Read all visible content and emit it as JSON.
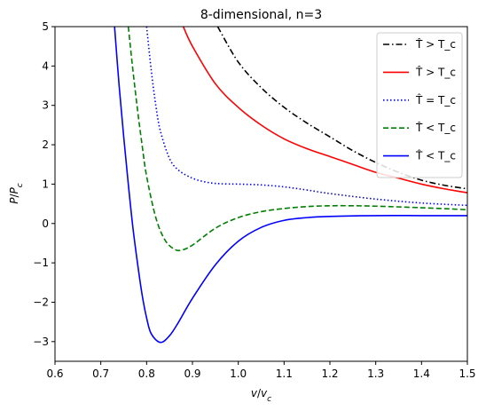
{
  "chart_data": {
    "type": "line",
    "title": "8-dimensional, n=3",
    "xlabel": "v/v_c",
    "ylabel": "P/P_c",
    "xlim": [
      0.6,
      1.5
    ],
    "ylim": [
      -3.5,
      5
    ],
    "xticks": [
      "0.6",
      "0.7",
      "0.8",
      "0.9",
      "1.0",
      "1.1",
      "1.2",
      "1.3",
      "1.4",
      "1.5"
    ],
    "yticks": [
      "−3",
      "−2",
      "−1",
      "0",
      "1",
      "2",
      "3",
      "4",
      "5"
    ],
    "grid": false,
    "legend_position": "top-right",
    "series": [
      {
        "name": "T̂ > T_c",
        "color": "#000000",
        "style": "dashdot",
        "x": [
          0.955,
          1.0,
          1.05,
          1.1,
          1.15,
          1.2,
          1.25,
          1.3,
          1.35,
          1.4,
          1.45,
          1.5
        ],
        "y": [
          5.0,
          4.1,
          3.45,
          2.95,
          2.55,
          2.2,
          1.85,
          1.55,
          1.3,
          1.1,
          0.97,
          0.88
        ]
      },
      {
        "name": "T̂ > T_c",
        "color": "#ff0000",
        "style": "solid",
        "x": [
          0.88,
          0.9,
          0.95,
          1.0,
          1.05,
          1.1,
          1.15,
          1.2,
          1.25,
          1.3,
          1.35,
          1.4,
          1.45,
          1.5
        ],
        "y": [
          5.0,
          4.5,
          3.55,
          2.95,
          2.5,
          2.15,
          1.9,
          1.7,
          1.5,
          1.3,
          1.15,
          1.0,
          0.88,
          0.78
        ]
      },
      {
        "name": "T̂ = T_c",
        "color": "#0000ff",
        "style": "dotted",
        "x": [
          0.8,
          0.81,
          0.82,
          0.83,
          0.85,
          0.87,
          0.9,
          0.93,
          0.96,
          1.0,
          1.05,
          1.1,
          1.15,
          1.2,
          1.3,
          1.4,
          1.5
        ],
        "y": [
          5.0,
          3.9,
          3.0,
          2.35,
          1.65,
          1.35,
          1.15,
          1.05,
          1.01,
          1.0,
          0.98,
          0.93,
          0.85,
          0.76,
          0.62,
          0.52,
          0.46
        ]
      },
      {
        "name": "T̂ < T_c",
        "color": "#008000",
        "style": "dashed",
        "x": [
          0.76,
          0.77,
          0.78,
          0.79,
          0.8,
          0.82,
          0.84,
          0.86,
          0.875,
          0.9,
          0.95,
          1.0,
          1.05,
          1.1,
          1.15,
          1.2,
          1.25,
          1.3,
          1.4,
          1.5
        ],
        "y": [
          5.0,
          3.9,
          2.9,
          2.0,
          1.2,
          0.15,
          -0.42,
          -0.65,
          -0.68,
          -0.55,
          -0.12,
          0.15,
          0.3,
          0.38,
          0.43,
          0.45,
          0.45,
          0.44,
          0.4,
          0.35
        ]
      },
      {
        "name": "T̂ < T_c",
        "color": "#0000ff",
        "style": "solid",
        "x": [
          0.73,
          0.74,
          0.75,
          0.76,
          0.77,
          0.78,
          0.79,
          0.8,
          0.81,
          0.83,
          0.85,
          0.87,
          0.9,
          0.95,
          1.0,
          1.05,
          1.1,
          1.15,
          1.2,
          1.3,
          1.4,
          1.5
        ],
        "y": [
          5.0,
          3.5,
          2.2,
          1.0,
          -0.1,
          -1.0,
          -1.8,
          -2.4,
          -2.8,
          -3.02,
          -2.85,
          -2.5,
          -1.9,
          -1.05,
          -0.45,
          -0.1,
          0.08,
          0.15,
          0.18,
          0.2,
          0.2,
          0.2
        ]
      }
    ]
  }
}
